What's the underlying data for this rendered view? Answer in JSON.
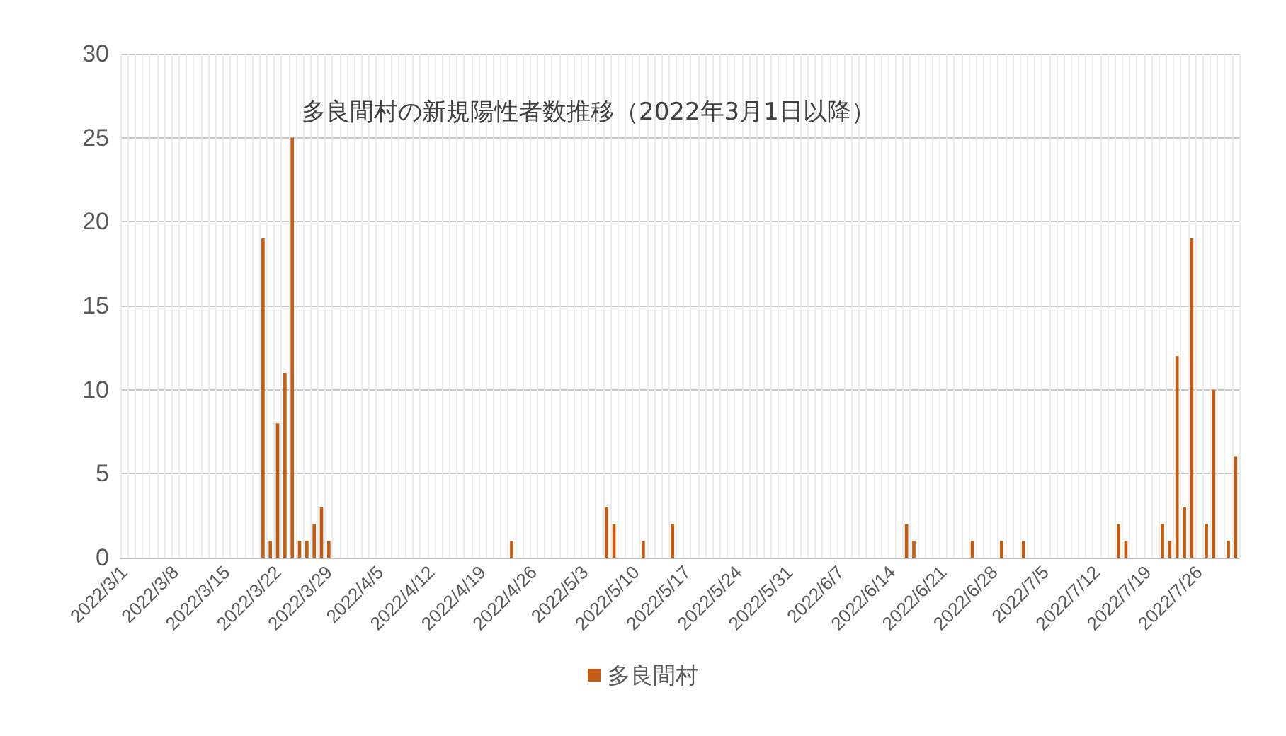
{
  "chart_data": {
    "type": "bar",
    "title": "多良間村の新規陽性者数推移（2022年3月1日以降）",
    "categories": [
      "2022/3/1",
      null,
      null,
      null,
      null,
      null,
      null,
      "2022/3/8",
      null,
      null,
      null,
      null,
      null,
      null,
      "2022/3/15",
      null,
      null,
      null,
      null,
      null,
      null,
      "2022/3/22",
      null,
      null,
      null,
      null,
      null,
      null,
      "2022/3/29",
      null,
      null,
      null,
      null,
      null,
      null,
      "2022/4/5",
      null,
      null,
      null,
      null,
      null,
      null,
      "2022/4/12",
      null,
      null,
      null,
      null,
      null,
      null,
      "2022/4/19",
      null,
      null,
      null,
      null,
      null,
      null,
      "2022/4/26",
      null,
      null,
      null,
      null,
      null,
      null,
      "2022/5/3",
      null,
      null,
      null,
      null,
      null,
      null,
      "2022/5/10",
      null,
      null,
      null,
      null,
      null,
      null,
      "2022/5/17",
      null,
      null,
      null,
      null,
      null,
      null,
      "2022/5/24",
      null,
      null,
      null,
      null,
      null,
      null,
      "2022/5/31",
      null,
      null,
      null,
      null,
      null,
      null,
      "2022/6/7",
      null,
      null,
      null,
      null,
      null,
      null,
      "2022/6/14",
      null,
      null,
      null,
      null,
      null,
      null,
      "2022/6/21",
      null,
      null,
      null,
      null,
      null,
      null,
      "2022/6/28",
      null,
      null,
      null,
      null,
      null,
      null,
      "2022/7/5",
      null,
      null,
      null,
      null,
      null,
      null,
      "2022/7/12",
      null,
      null,
      null,
      null,
      null,
      null,
      "2022/7/19",
      null,
      null,
      null,
      null,
      null,
      null,
      "2022/7/26",
      null,
      null,
      null,
      null,
      null
    ],
    "series": [
      {
        "name": "多良間村",
        "color": "#c55a11",
        "values": [
          0,
          0,
          0,
          0,
          0,
          0,
          0,
          0,
          0,
          0,
          0,
          0,
          0,
          0,
          0,
          0,
          0,
          0,
          0,
          19,
          1,
          8,
          11,
          25,
          1,
          1,
          2,
          3,
          1,
          0,
          0,
          0,
          0,
          0,
          0,
          0,
          0,
          0,
          0,
          0,
          0,
          0,
          0,
          0,
          0,
          0,
          0,
          0,
          0,
          0,
          0,
          0,
          0,
          1,
          0,
          0,
          0,
          0,
          0,
          0,
          0,
          0,
          0,
          0,
          0,
          0,
          3,
          2,
          0,
          0,
          0,
          1,
          0,
          0,
          0,
          2,
          0,
          0,
          0,
          0,
          0,
          0,
          0,
          0,
          0,
          0,
          0,
          0,
          0,
          0,
          0,
          0,
          0,
          0,
          0,
          0,
          0,
          0,
          0,
          0,
          0,
          0,
          0,
          0,
          0,
          0,
          0,
          2,
          1,
          0,
          0,
          0,
          0,
          0,
          0,
          0,
          1,
          0,
          0,
          0,
          1,
          0,
          0,
          1,
          0,
          0,
          0,
          0,
          0,
          0,
          0,
          0,
          0,
          0,
          0,
          0,
          2,
          1,
          0,
          0,
          0,
          0,
          2,
          1,
          12,
          3,
          19,
          0,
          2,
          10,
          0,
          1,
          6
        ]
      }
    ],
    "ylim": [
      0,
      30
    ],
    "yticks": [
      0,
      5,
      10,
      15,
      20,
      25,
      30
    ],
    "grid": true,
    "legend": "bottom"
  }
}
